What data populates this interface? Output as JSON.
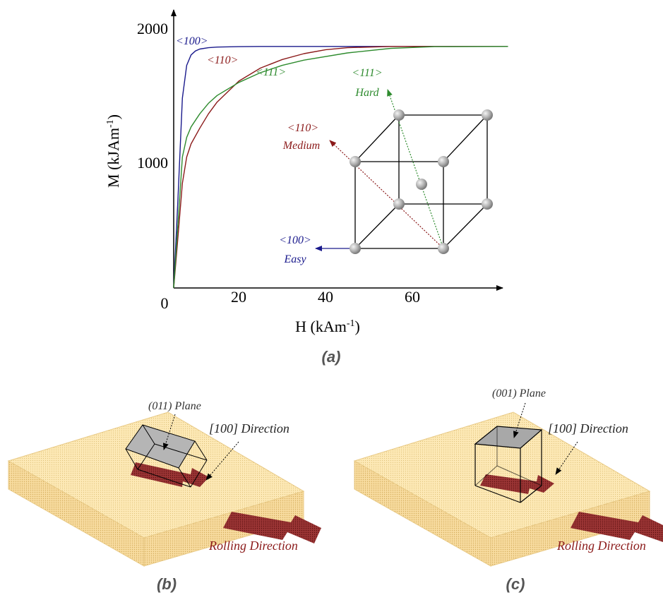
{
  "chart_data": {
    "type": "line",
    "xlabel": "H (kAm",
    "xlabel_sup": "-1",
    "xlabel_end": ")",
    "ylabel": "M (kJAm",
    "ylabel_sup": "-1",
    "ylabel_end": ")",
    "origin_label": "0",
    "x_ticks": [
      "20",
      "40",
      "60"
    ],
    "y_ticks": [
      "1000",
      "2000"
    ],
    "xlim": [
      0,
      78
    ],
    "ylim": [
      0,
      2000
    ],
    "series": [
      {
        "name": "<100>",
        "color": "#1a1a8c",
        "x": [
          0,
          1,
          2,
          3,
          4,
          5,
          6,
          8,
          10,
          15,
          20,
          40,
          60,
          77
        ],
        "y": [
          0,
          700,
          1450,
          1700,
          1780,
          1810,
          1825,
          1835,
          1840,
          1843,
          1845,
          1845,
          1845,
          1845
        ]
      },
      {
        "name": "<110>",
        "color": "#8b1a1a",
        "x": [
          0,
          1,
          2,
          3,
          4,
          6,
          8,
          10,
          15,
          20,
          25,
          30,
          35,
          40,
          50,
          60,
          77
        ],
        "y": [
          0,
          400,
          800,
          1000,
          1100,
          1220,
          1330,
          1420,
          1580,
          1680,
          1745,
          1790,
          1820,
          1835,
          1845,
          1845,
          1845
        ]
      },
      {
        "name": "<111>",
        "color": "#2e8b2e",
        "x": [
          0,
          1,
          2,
          3,
          4,
          6,
          8,
          10,
          15,
          20,
          25,
          30,
          40,
          50,
          60,
          77
        ],
        "y": [
          0,
          500,
          1000,
          1150,
          1230,
          1330,
          1410,
          1470,
          1570,
          1645,
          1700,
          1740,
          1795,
          1830,
          1843,
          1845
        ]
      }
    ]
  },
  "inset": {
    "easy_dir": "<100>",
    "easy_word": "Easy",
    "medium_dir": "<110>",
    "medium_word": "Medium",
    "hard_dir": "<111>",
    "hard_word": "Hard"
  },
  "captions": {
    "a": "(a)",
    "b": "(b)",
    "c": "(c)"
  },
  "panel_b": {
    "plane": "(011) Plane",
    "direction": "[100] Direction",
    "rolling": "Rolling Direction"
  },
  "panel_c": {
    "plane": "(001) Plane",
    "direction": "[100] Direction",
    "rolling": "Rolling Direction"
  },
  "colors": {
    "easy": "#1a1a8c",
    "medium": "#8b1a1a",
    "hard": "#2e8b2e",
    "slab": "#fde9b6",
    "slab_edge": "#e8c985",
    "arrow": "#8b2a2a"
  }
}
